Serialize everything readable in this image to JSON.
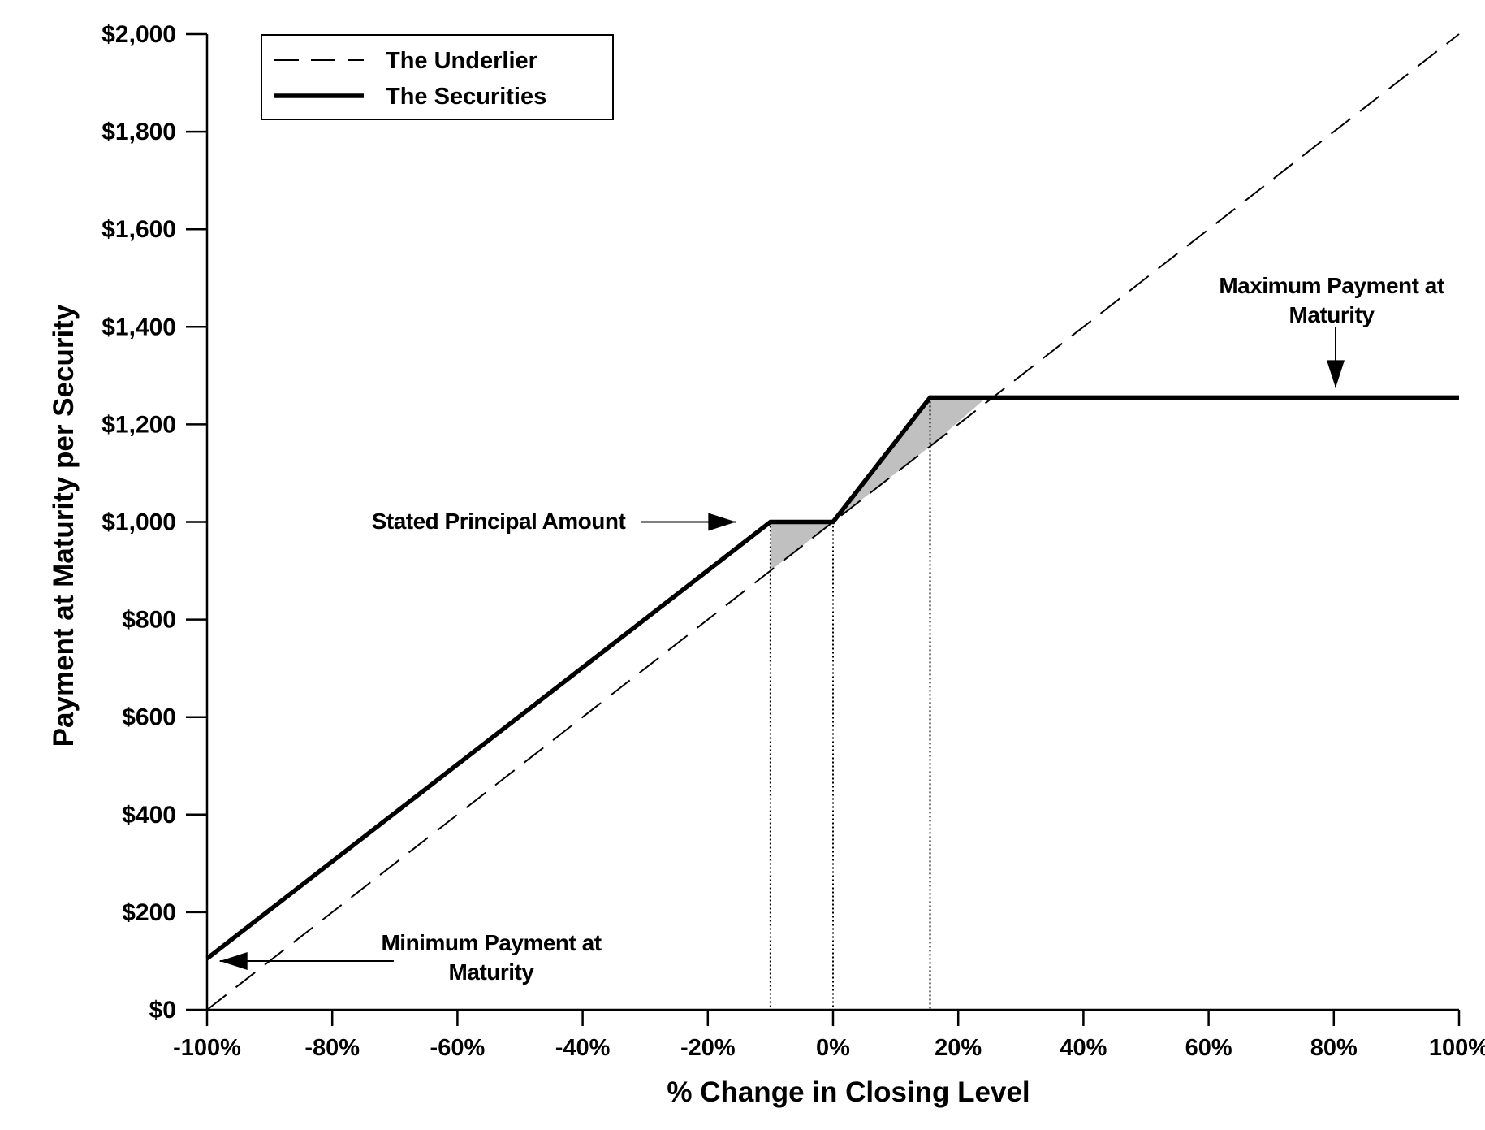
{
  "chart_data": {
    "type": "line",
    "title": "",
    "xlabel": "% Change in Closing Level",
    "ylabel": "Payment at Maturity per Security",
    "xlim": [
      -100,
      100
    ],
    "ylim": [
      0,
      2000
    ],
    "grid": false,
    "x_ticks": [
      -100,
      -80,
      -60,
      -40,
      -20,
      0,
      20,
      40,
      60,
      80,
      100
    ],
    "x_tick_labels": [
      "-100%",
      "-80%",
      "-60%",
      "-40%",
      "-20%",
      "0%",
      "20%",
      "40%",
      "60%",
      "80%",
      "100%"
    ],
    "y_ticks": [
      0,
      200,
      400,
      600,
      800,
      1000,
      1200,
      1400,
      1600,
      1800,
      2000
    ],
    "y_tick_labels": [
      "$0",
      "$200",
      "$400",
      "$600",
      "$800",
      "$1,000",
      "$1,200",
      "$1,400",
      "$1,600",
      "$1,800",
      "$2,000"
    ],
    "legend": {
      "position": "top-left",
      "entries": [
        {
          "name": "The Underlier",
          "style": "dashed"
        },
        {
          "name": "The Securities",
          "style": "solid-thick"
        }
      ]
    },
    "series": [
      {
        "name": "The Underlier",
        "style": "dashed",
        "points": [
          [
            -100,
            0
          ],
          [
            100,
            2000
          ]
        ]
      },
      {
        "name": "The Securities",
        "style": "solid-thick",
        "points": [
          [
            -100,
            105
          ],
          [
            -10,
            1000
          ],
          [
            0,
            1000
          ],
          [
            15.5,
            1255
          ],
          [
            100,
            1255
          ]
        ]
      }
    ],
    "shaded_regions": [
      {
        "points": [
          [
            -10,
            1000
          ],
          [
            0,
            1000
          ],
          [
            -10,
            900
          ]
        ],
        "color": "#c0c0c0"
      },
      {
        "points": [
          [
            0,
            1000
          ],
          [
            15.5,
            1255
          ],
          [
            24.5,
            1255
          ],
          [
            15.5,
            1155
          ]
        ],
        "color": "#c0c0c0"
      }
    ],
    "reference_lines": [
      {
        "x": -10,
        "y_top": 1000,
        "style": "dotted"
      },
      {
        "x": 0,
        "y_top": 1000,
        "style": "dotted"
      },
      {
        "x": 15.5,
        "y_top": 1255,
        "style": "dotted"
      }
    ],
    "annotations": [
      {
        "id": "stated",
        "lines": [
          "Stated Principal Amount"
        ],
        "arrow_to": [
          -15,
          1000
        ]
      },
      {
        "id": "max",
        "lines": [
          "Maximum Payment at",
          "Maturity"
        ],
        "arrow_to": [
          80,
          1255
        ]
      },
      {
        "id": "min",
        "lines": [
          "Minimum Payment at",
          "Maturity"
        ],
        "arrow_to": [
          -99,
          105
        ]
      }
    ]
  }
}
